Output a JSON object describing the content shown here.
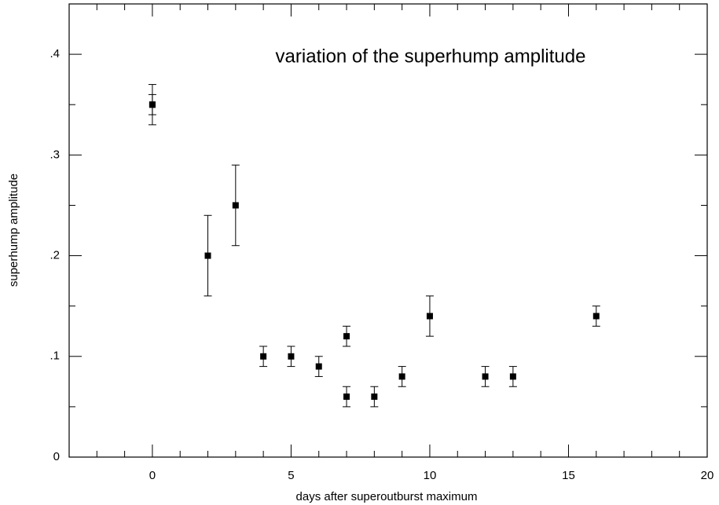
{
  "chart_data": {
    "type": "scatter",
    "title": "variation of the superhump amplitude",
    "xlabel": "days after superoutburst maximum",
    "ylabel": "superhump amplitude",
    "x": [
      0,
      0,
      2,
      3,
      4,
      5,
      6,
      7,
      7,
      8,
      9,
      10,
      12,
      13,
      16
    ],
    "values": [
      0.35,
      0.35,
      0.2,
      0.25,
      0.1,
      0.1,
      0.09,
      0.12,
      0.06,
      0.06,
      0.08,
      0.14,
      0.08,
      0.08,
      0.14
    ],
    "errors": [
      0.02,
      0.01,
      0.04,
      0.04,
      0.01,
      0.01,
      0.01,
      0.01,
      0.01,
      0.01,
      0.01,
      0.02,
      0.01,
      0.01,
      0.01
    ],
    "color": "#000000",
    "xlim": [
      -3,
      20
    ],
    "xticks": [
      0,
      5,
      10,
      15,
      20
    ],
    "xminorticks": [
      -2,
      -1,
      1,
      2,
      3,
      4,
      6,
      7,
      8,
      9,
      11,
      12,
      13,
      14,
      16,
      17,
      18,
      19
    ],
    "ylim": [
      0,
      0.45
    ],
    "yticks": [
      0,
      {
        "value": 0.1,
        "label": ".1"
      },
      {
        "value": 0.2,
        "label": ".2"
      },
      {
        "value": 0.3,
        "label": ".3"
      },
      {
        "value": 0.4,
        "label": ".4"
      }
    ],
    "yminorticks": [
      0.05,
      0.15,
      0.25,
      0.35
    ],
    "grid": false
  }
}
